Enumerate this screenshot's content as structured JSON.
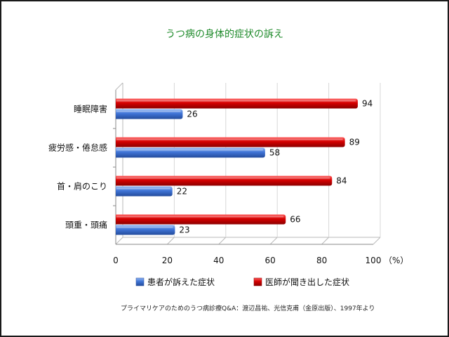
{
  "chart_data": {
    "type": "bar",
    "orientation": "horizontal",
    "title": "うつ病の身体的症状の訴え",
    "categories": [
      "睡眠障害",
      "疲労感・倦怠感",
      "首・肩のこり",
      "頭重・頭痛"
    ],
    "series": [
      {
        "name": "医師が聞き出した症状",
        "color": "#cc0000",
        "values": [
          94,
          89,
          84,
          66
        ]
      },
      {
        "name": "患者が訴えた症状",
        "color": "#3a6fd0",
        "values": [
          26,
          58,
          22,
          23
        ]
      }
    ],
    "xlim": [
      0,
      100
    ],
    "x_ticks": [
      0,
      20,
      40,
      60,
      80,
      100
    ],
    "x_unit": "（%）",
    "legend": [
      "患者が訴えた症状",
      "医師が聞き出した症状"
    ],
    "legend_placement": "bottom",
    "source": "プライマリケアのためのうつ病診療Q&A：渡辺昌祐、光信克甫（金原出版）、1997年より"
  }
}
